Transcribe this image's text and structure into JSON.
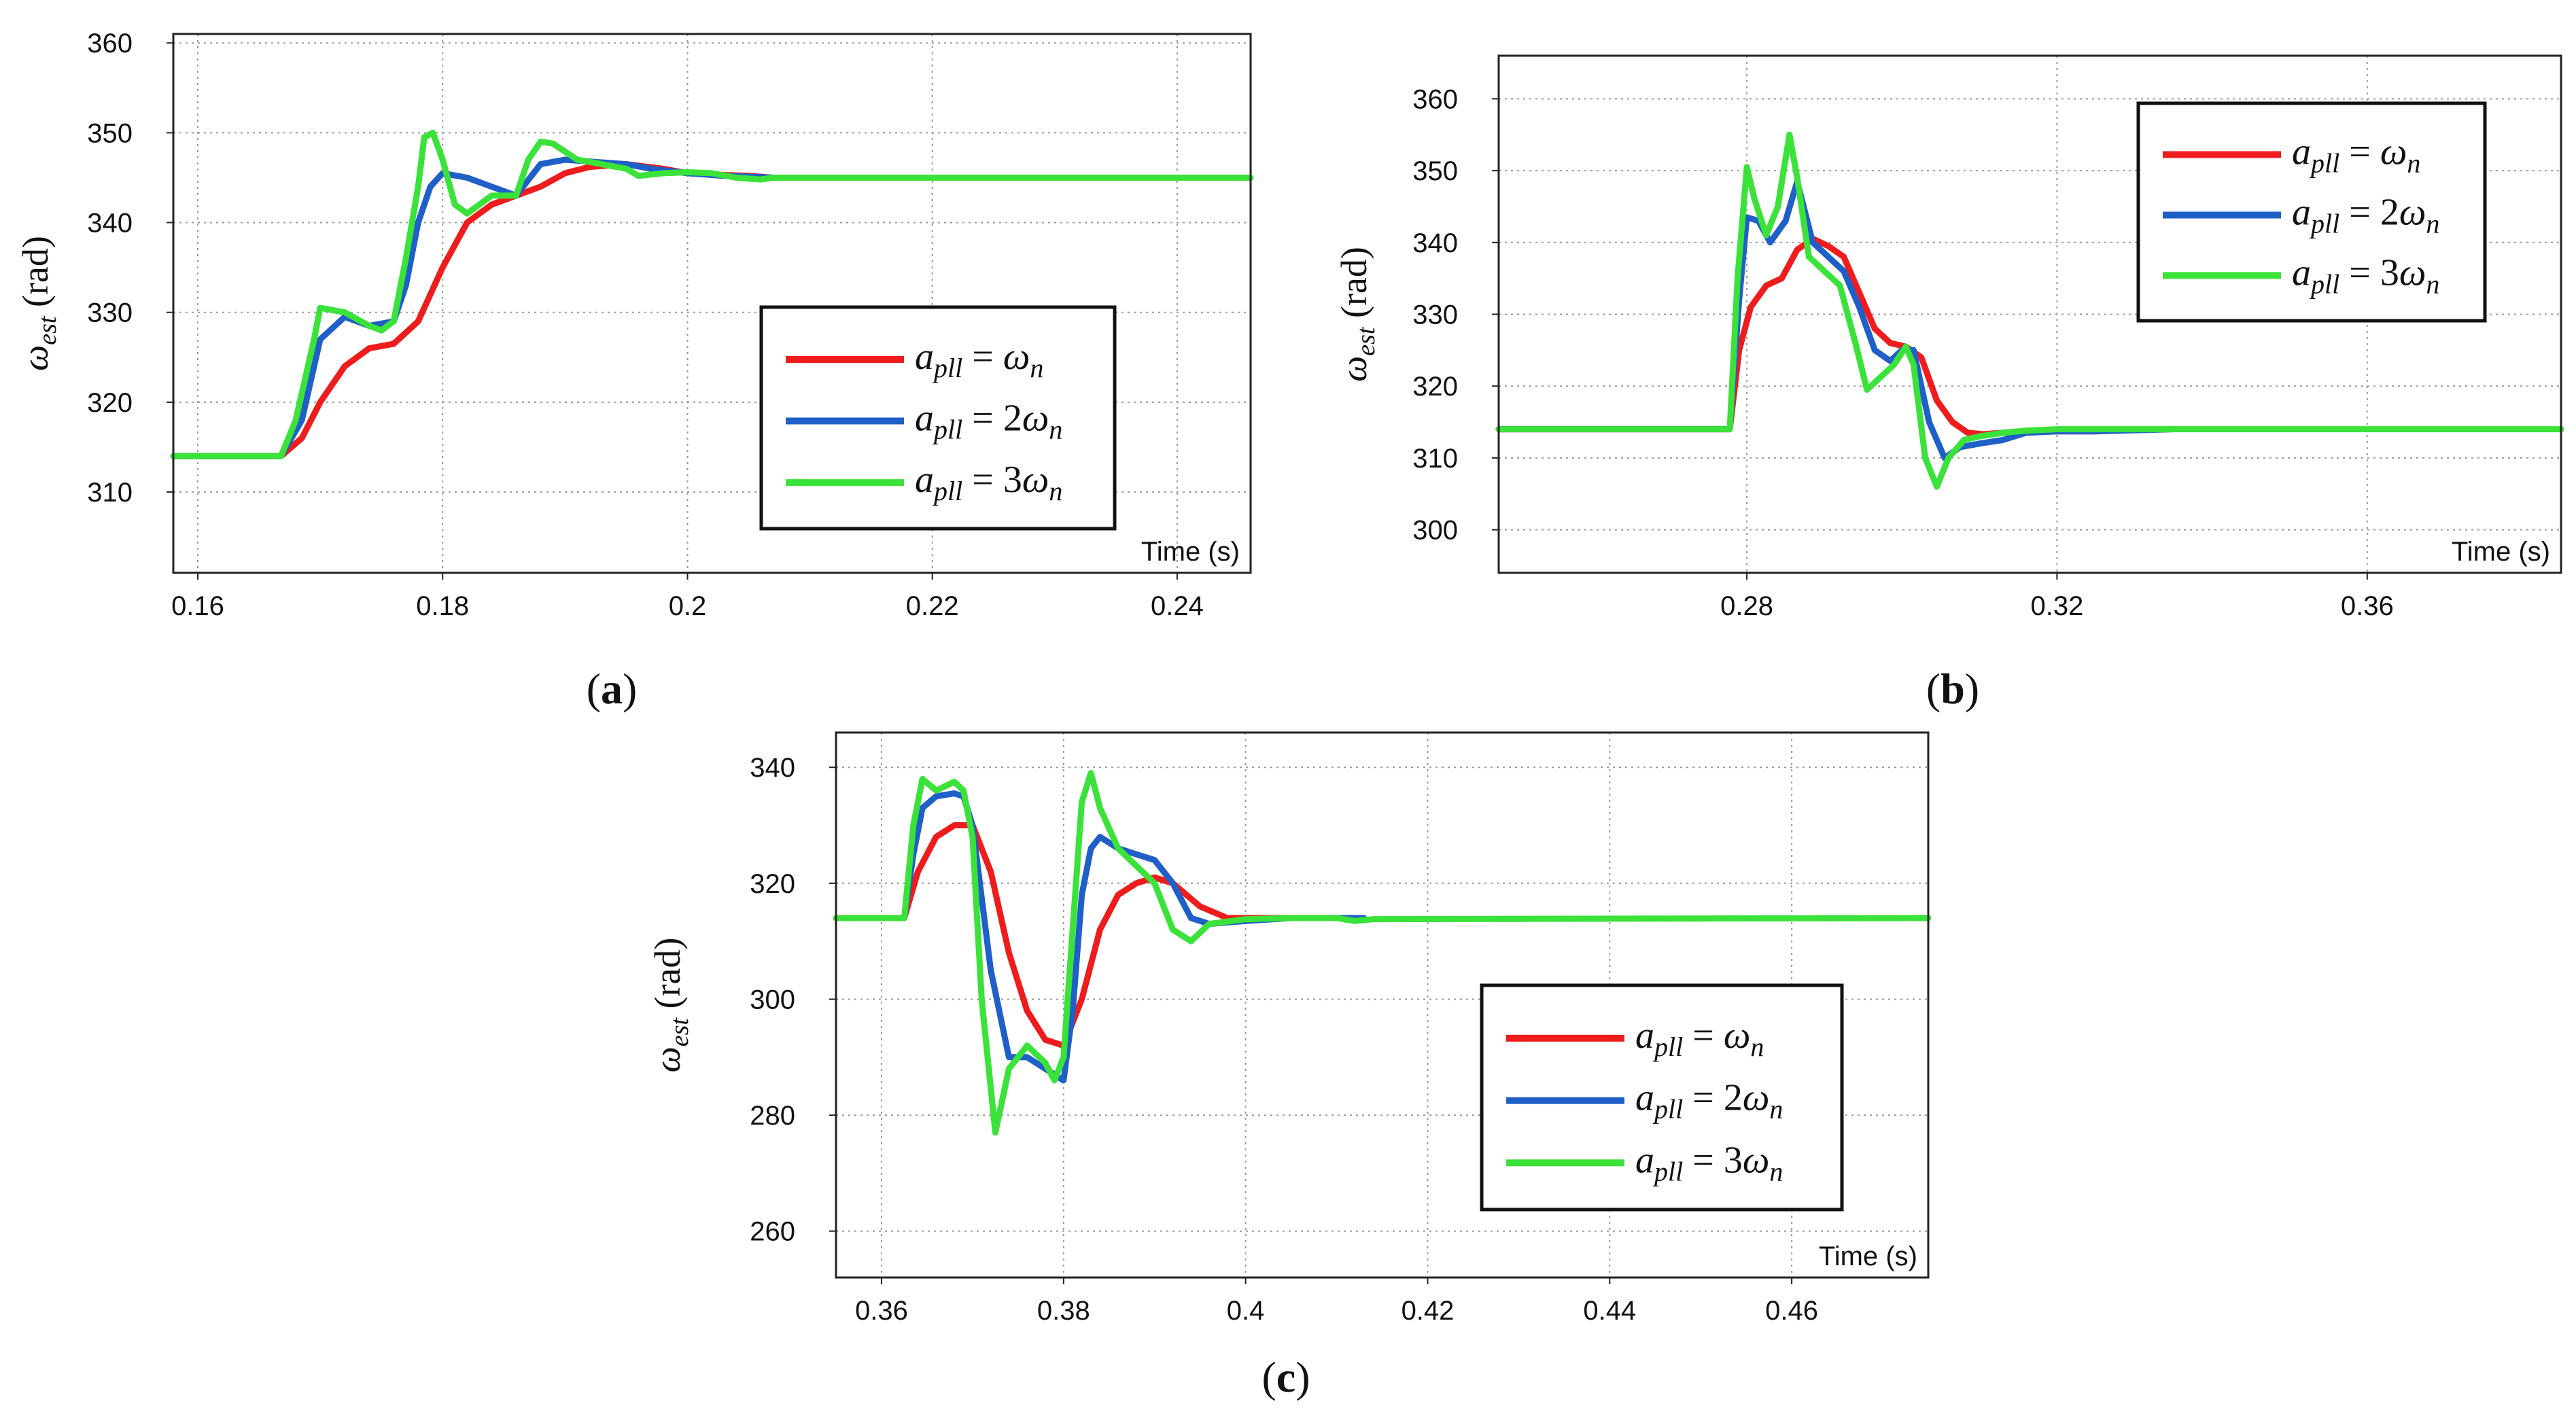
{
  "chart_data": [
    {
      "id": "a",
      "type": "line",
      "caption": "a",
      "ylabel": {
        "symbol": "ω",
        "sub": "est",
        "unit": "(rad)"
      },
      "xlabel": "Time (s)",
      "xlim": [
        0.158,
        0.246
      ],
      "ylim": [
        301,
        361
      ],
      "xticks": [
        0.16,
        0.18,
        0.2,
        0.22,
        0.24
      ],
      "xtick_labels": [
        "0.16",
        "0.18",
        "0.2",
        "0.22",
        "0.24"
      ],
      "yticks": [
        310,
        320,
        330,
        340,
        350,
        360
      ],
      "ytick_labels": [
        "310",
        "320",
        "330",
        "340",
        "350",
        "360"
      ],
      "legend": {
        "position": "bottom-right"
      },
      "series": [
        {
          "name": "apll = ωn",
          "lhs": "a",
          "lhs_sub": "pll",
          "rhs_coef": "",
          "rhs": "ω",
          "rhs_sub": "n",
          "color": "#ee1c1c",
          "x": [
            0.158,
            0.1668,
            0.1685,
            0.17,
            0.172,
            0.174,
            0.176,
            0.178,
            0.18,
            0.182,
            0.184,
            0.186,
            0.188,
            0.19,
            0.192,
            0.195,
            0.198,
            0.2,
            0.203,
            0.205,
            0.207
          ],
          "y": [
            314,
            314,
            316,
            320,
            324,
            326,
            326.5,
            329,
            335,
            340,
            342,
            343,
            344,
            345.5,
            346.2,
            346.5,
            346,
            345.5,
            345.3,
            345.2,
            345
          ]
        },
        {
          "name": "apll = 2ωn",
          "lhs": "a",
          "lhs_sub": "pll",
          "rhs_coef": "2",
          "rhs": "ω",
          "rhs_sub": "n",
          "color": "#1f5fc8",
          "x": [
            0.158,
            0.1668,
            0.1685,
            0.17,
            0.172,
            0.174,
            0.176,
            0.177,
            0.178,
            0.179,
            0.18,
            0.182,
            0.184,
            0.186,
            0.188,
            0.19,
            0.192,
            0.195,
            0.197,
            0.2,
            0.203,
            0.205,
            0.207
          ],
          "y": [
            314,
            314,
            318,
            327,
            329.5,
            328.5,
            329,
            333,
            340,
            344,
            345.5,
            345,
            344,
            343,
            346.5,
            347,
            346.8,
            346.5,
            346,
            345.5,
            345.2,
            345.1,
            345
          ]
        },
        {
          "name": "apll = 3ωn",
          "lhs": "a",
          "lhs_sub": "pll",
          "rhs_coef": "3",
          "rhs": "ω",
          "rhs_sub": "n",
          "color": "#3ae23a",
          "x": [
            0.158,
            0.1668,
            0.168,
            0.1695,
            0.17,
            0.172,
            0.174,
            0.175,
            0.176,
            0.177,
            0.178,
            0.1785,
            0.1792,
            0.18,
            0.181,
            0.182,
            0.184,
            0.186,
            0.187,
            0.188,
            0.189,
            0.191,
            0.193,
            0.195,
            0.196,
            0.198,
            0.2,
            0.202,
            0.204,
            0.206,
            0.207,
            0.246
          ],
          "y": [
            314,
            314,
            318,
            327,
            330.5,
            330,
            328.5,
            328,
            329,
            336,
            344,
            349.5,
            350,
            347,
            342,
            341,
            343,
            343,
            347,
            349,
            348.8,
            347,
            346.5,
            346,
            345.2,
            345.5,
            345.6,
            345.5,
            345,
            344.8,
            345,
            345
          ]
        }
      ]
    },
    {
      "id": "b",
      "type": "line",
      "caption": "b",
      "ylabel": {
        "symbol": "ω",
        "sub": "est",
        "unit": "(rad)"
      },
      "xlabel": "Time (s)",
      "xlim": [
        0.248,
        0.385
      ],
      "ylim": [
        294,
        366
      ],
      "xticks": [
        0.28,
        0.32,
        0.36
      ],
      "xtick_labels": [
        "0.28",
        "0.32",
        "0.36"
      ],
      "yticks": [
        300,
        310,
        320,
        330,
        340,
        350,
        360
      ],
      "ytick_labels": [
        "300",
        "310",
        "320",
        "330",
        "340",
        "350",
        "360"
      ],
      "legend": {
        "position": "top-right"
      },
      "series": [
        {
          "name": "apll = ωn",
          "lhs": "a",
          "lhs_sub": "pll",
          "rhs_coef": "",
          "rhs": "ω",
          "rhs_sub": "n",
          "color": "#ee1c1c",
          "x": [
            0.248,
            0.2778,
            0.279,
            0.2805,
            0.2825,
            0.2845,
            0.2865,
            0.2885,
            0.2905,
            0.2925,
            0.2945,
            0.2965,
            0.2985,
            0.3005,
            0.3025,
            0.3045,
            0.3065,
            0.3085,
            0.3105,
            0.313,
            0.316,
            0.32,
            0.325
          ],
          "y": [
            314,
            314,
            325,
            331,
            334,
            335,
            339,
            340.5,
            339.5,
            338,
            333,
            328,
            326,
            325.5,
            324,
            318,
            315,
            313.5,
            313.3,
            313.5,
            313.6,
            313.7,
            313.7
          ]
        },
        {
          "name": "apll = 2ωn",
          "lhs": "a",
          "lhs_sub": "pll",
          "rhs_coef": "2",
          "rhs": "ω",
          "rhs_sub": "n",
          "color": "#1f5fc8",
          "x": [
            0.248,
            0.2778,
            0.279,
            0.28,
            0.2815,
            0.283,
            0.285,
            0.2865,
            0.2885,
            0.2905,
            0.2925,
            0.2945,
            0.2965,
            0.2985,
            0.3,
            0.3015,
            0.3035,
            0.3055,
            0.3075,
            0.31,
            0.313,
            0.316,
            0.32,
            0.325,
            0.335
          ],
          "y": [
            314,
            314,
            332,
            343.5,
            343,
            340,
            343,
            348.5,
            340,
            338,
            336,
            331,
            325,
            323.5,
            325,
            325,
            315,
            310,
            311.5,
            312,
            312.5,
            313.5,
            313.7,
            313.7,
            314
          ]
        },
        {
          "name": "apll = 3ωn",
          "lhs": "a",
          "lhs_sub": "pll",
          "rhs_coef": "3",
          "rhs": "ω",
          "rhs_sub": "n",
          "color": "#3ae23a",
          "x": [
            0.248,
            0.2778,
            0.2788,
            0.28,
            0.281,
            0.2825,
            0.284,
            0.2855,
            0.2865,
            0.288,
            0.29,
            0.292,
            0.294,
            0.2955,
            0.297,
            0.299,
            0.3005,
            0.3015,
            0.303,
            0.3045,
            0.306,
            0.308,
            0.31,
            0.313,
            0.316,
            0.32,
            0.385
          ],
          "y": [
            314,
            314,
            335,
            350.5,
            346,
            341,
            345,
            355,
            349,
            338,
            336,
            334,
            326,
            319.5,
            321,
            323,
            325.5,
            323,
            310,
            306,
            310,
            312.5,
            313,
            313.5,
            313.8,
            314,
            314
          ]
        }
      ]
    },
    {
      "id": "c",
      "type": "line",
      "caption": "c",
      "ylabel": {
        "symbol": "ω",
        "sub": "est",
        "unit": "(rad)"
      },
      "xlabel": "Time (s)",
      "xlim": [
        0.355,
        0.475
      ],
      "ylim": [
        252,
        346
      ],
      "xticks": [
        0.36,
        0.38,
        0.4,
        0.42,
        0.44,
        0.46
      ],
      "xtick_labels": [
        "0.36",
        "0.38",
        "0.4",
        "0.42",
        "0.44",
        "0.46"
      ],
      "yticks": [
        260,
        280,
        300,
        320,
        340
      ],
      "ytick_labels": [
        "260",
        "280",
        "300",
        "320",
        "340"
      ],
      "legend": {
        "position": "bottom-right"
      },
      "series": [
        {
          "name": "apll = ωn",
          "lhs": "a",
          "lhs_sub": "pll",
          "rhs_coef": "",
          "rhs": "ω",
          "rhs_sub": "n",
          "color": "#ee1c1c",
          "x": [
            0.355,
            0.3625,
            0.364,
            0.366,
            0.368,
            0.37,
            0.372,
            0.374,
            0.376,
            0.378,
            0.38,
            0.382,
            0.384,
            0.386,
            0.388,
            0.39,
            0.392,
            0.395,
            0.398,
            0.4,
            0.405,
            0.41,
            0.413
          ],
          "y": [
            314,
            314,
            322,
            328,
            330,
            330,
            322,
            308,
            298,
            293,
            292,
            300,
            312,
            318,
            320,
            321,
            320,
            316,
            314,
            314,
            314,
            314,
            314
          ]
        },
        {
          "name": "apll = 2ωn",
          "lhs": "a",
          "lhs_sub": "pll",
          "rhs_coef": "2",
          "rhs": "ω",
          "rhs_sub": "n",
          "color": "#1f5fc8",
          "x": [
            0.355,
            0.3625,
            0.3635,
            0.3645,
            0.366,
            0.368,
            0.369,
            0.37,
            0.372,
            0.374,
            0.376,
            0.378,
            0.38,
            0.381,
            0.382,
            0.383,
            0.384,
            0.386,
            0.388,
            0.39,
            0.392,
            0.394,
            0.396,
            0.4,
            0.405,
            0.41,
            0.413
          ],
          "y": [
            314,
            314,
            325,
            333,
            335,
            335.5,
            335,
            330,
            305,
            290,
            290,
            288,
            286,
            298,
            318,
            326,
            328,
            326,
            325,
            324,
            320,
            314,
            313,
            313.5,
            314,
            314,
            314
          ]
        },
        {
          "name": "apll = 3ωn",
          "lhs": "a",
          "lhs_sub": "pll",
          "rhs_coef": "3",
          "rhs": "ω",
          "rhs_sub": "n",
          "color": "#3ae23a",
          "x": [
            0.355,
            0.3625,
            0.3635,
            0.3645,
            0.366,
            0.368,
            0.369,
            0.37,
            0.371,
            0.3725,
            0.374,
            0.376,
            0.378,
            0.379,
            0.38,
            0.381,
            0.382,
            0.383,
            0.384,
            0.386,
            0.388,
            0.39,
            0.392,
            0.394,
            0.396,
            0.4,
            0.405,
            0.41,
            0.412,
            0.414,
            0.475
          ],
          "y": [
            314,
            314,
            330,
            338,
            336,
            337.5,
            336,
            328,
            300,
            277,
            288,
            292,
            289,
            286,
            290,
            312,
            334,
            339,
            333,
            326,
            323,
            320,
            312,
            310,
            313,
            313.8,
            314,
            314,
            313.5,
            313.8,
            314
          ]
        }
      ]
    }
  ]
}
